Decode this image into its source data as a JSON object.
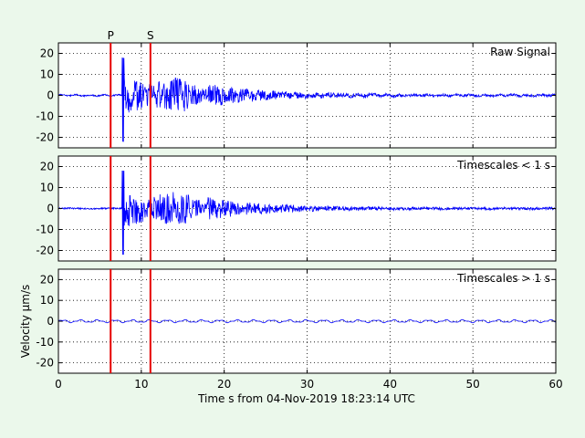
{
  "figure": {
    "background": "#ebf8eb",
    "phase_color": "#e60000",
    "signal_color": "#0000ff",
    "xlabel": "Time s from 04-Nov-2019 18:23:14 UTC"
  },
  "chart_data": [
    {
      "type": "line",
      "label": "Raw Signal",
      "xlim": [
        0,
        60
      ],
      "ylim": [
        -25,
        25
      ],
      "xticks": [
        0,
        10,
        20,
        30,
        40,
        50,
        60
      ],
      "yticks": [
        -20,
        -10,
        0,
        10,
        20
      ],
      "show_xtick_labels": false,
      "grid": true,
      "phase_markers": [
        {
          "name": "P",
          "x": 6.3
        },
        {
          "name": "S",
          "x": 11.1
        }
      ],
      "series": [
        {
          "color": "#0000ff",
          "values": []
        }
      ]
    },
    {
      "type": "line",
      "label": "Timescales < 1 s",
      "xlim": [
        0,
        60
      ],
      "ylim": [
        -25,
        25
      ],
      "xticks": [
        0,
        10,
        20,
        30,
        40,
        50,
        60
      ],
      "yticks": [
        -20,
        -10,
        0,
        10,
        20
      ],
      "show_xtick_labels": false,
      "grid": true,
      "phase_markers": [
        {
          "name": "P",
          "x": 6.3
        },
        {
          "name": "S",
          "x": 11.1
        }
      ],
      "series": [
        {
          "color": "#0000ff",
          "values": []
        }
      ]
    },
    {
      "type": "line",
      "label": "Timescales > 1 s",
      "ylabel": "Velocity μm/s",
      "xlim": [
        0,
        60
      ],
      "ylim": [
        -25,
        25
      ],
      "xticks": [
        0,
        10,
        20,
        30,
        40,
        50,
        60
      ],
      "yticks": [
        -20,
        -10,
        0,
        10,
        20
      ],
      "show_xtick_labels": true,
      "grid": true,
      "phase_markers": [
        {
          "name": "P",
          "x": 6.3
        },
        {
          "name": "S",
          "x": 11.1
        }
      ],
      "series": [
        {
          "color": "#0000ff",
          "values": []
        }
      ]
    }
  ]
}
